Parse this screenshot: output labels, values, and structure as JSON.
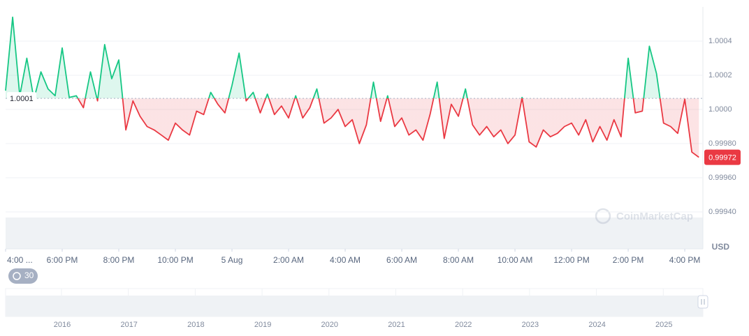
{
  "chart_data": {
    "type": "line",
    "currency": "USD",
    "watermark": "CoinMarketCap",
    "range_button": 30,
    "baseline": {
      "value": 1.000065,
      "label": "1.0001"
    },
    "current_price": 0.99972,
    "up_color": "#16c784",
    "down_color": "#ea3943",
    "grid": true,
    "xlim": [
      0,
      24.64
    ],
    "xticks": [
      {
        "value": 0,
        "label": "4:00 ..."
      },
      {
        "value": 2,
        "label": "6:00 PM"
      },
      {
        "value": 4,
        "label": "8:00 PM"
      },
      {
        "value": 6,
        "label": "10:00 PM"
      },
      {
        "value": 8,
        "label": "5 Aug"
      },
      {
        "value": 10,
        "label": "2:00 AM"
      },
      {
        "value": 12,
        "label": "4:00 AM"
      },
      {
        "value": 14,
        "label": "6:00 AM"
      },
      {
        "value": 16,
        "label": "8:00 AM"
      },
      {
        "value": 18,
        "label": "10:00 AM"
      },
      {
        "value": 20,
        "label": "12:00 PM"
      },
      {
        "value": 22,
        "label": "2:00 PM"
      },
      {
        "value": 24,
        "label": "4:00 PM"
      }
    ],
    "ylim": [
      0.9992,
      1.0006
    ],
    "yticks": [
      {
        "value": 0.9994,
        "label": "0.99940"
      },
      {
        "value": 0.9996,
        "label": "0.99960"
      },
      {
        "value": 0.9998,
        "label": "0.99980"
      },
      {
        "value": 1,
        "label": "1.0000"
      },
      1.0002,
      1.0004
    ],
    "x": [
      0,
      0.25,
      0.5,
      0.75,
      1,
      1.25,
      1.5,
      1.75,
      2,
      2.25,
      2.5,
      2.75,
      3,
      3.25,
      3.5,
      3.75,
      4,
      4.25,
      4.5,
      4.75,
      5,
      5.25,
      5.5,
      5.75,
      6,
      6.25,
      6.5,
      6.75,
      7,
      7.25,
      7.5,
      7.75,
      8,
      8.25,
      8.5,
      8.75,
      9,
      9.25,
      9.5,
      9.75,
      10,
      10.25,
      10.5,
      10.75,
      11,
      11.25,
      11.5,
      11.75,
      12,
      12.25,
      12.5,
      12.75,
      13,
      13.25,
      13.5,
      13.75,
      14,
      14.25,
      14.5,
      14.75,
      15,
      15.25,
      15.5,
      15.75,
      16,
      16.25,
      16.5,
      16.75,
      17,
      17.25,
      17.5,
      17.75,
      18,
      18.25,
      18.5,
      18.75,
      19,
      19.25,
      19.5,
      19.75,
      20,
      20.25,
      20.5,
      20.75,
      21,
      21.25,
      21.5,
      21.75,
      22,
      22.25,
      22.5,
      22.75,
      23,
      23.25,
      23.5,
      23.75,
      24,
      24.25,
      24.5
    ],
    "values": [
      1.00011,
      1.00054,
      1.00008,
      1.0003,
      1.00006,
      1.00022,
      1.00012,
      1.00008,
      1.00036,
      1.00007,
      1.00008,
      1.00001,
      1.00022,
      1.00005,
      1.00038,
      1.00018,
      1.00029,
      0.99988,
      1.00005,
      0.99996,
      0.9999,
      0.99988,
      0.99985,
      0.99982,
      0.99992,
      0.99988,
      0.99985,
      0.99999,
      0.99997,
      1.0001,
      1.00003,
      0.99998,
      1.00014,
      1.00033,
      1.00005,
      1.0001,
      0.99998,
      1.00009,
      0.99997,
      1.00002,
      0.99995,
      1.00008,
      0.99995,
      1.00001,
      1.00012,
      0.99992,
      0.99995,
      1,
      0.9999,
      0.99994,
      0.9998,
      0.99991,
      1.00016,
      0.99993,
      1.00008,
      0.9999,
      0.99995,
      0.99985,
      0.99988,
      0.99982,
      0.99997,
      1.00016,
      0.99983,
      1.00003,
      0.99996,
      1.00012,
      0.99991,
      0.99985,
      0.9999,
      0.99984,
      0.99988,
      0.9998,
      0.99985,
      1.00007,
      0.99981,
      0.99978,
      0.99988,
      0.99984,
      0.99986,
      0.9999,
      0.99992,
      0.99985,
      0.99994,
      0.99981,
      0.9999,
      0.99982,
      0.99994,
      0.99984,
      1.0003,
      0.99998,
      0.99999,
      1.00037,
      1.00021,
      0.99992,
      0.9999,
      0.99986,
      1.00006,
      0.99975,
      0.99972
    ],
    "navigator": {
      "years": [
        "2016",
        "2017",
        "2018",
        "2019",
        "2020",
        "2021",
        "2022",
        "2023",
        "2024",
        "2025"
      ]
    }
  }
}
